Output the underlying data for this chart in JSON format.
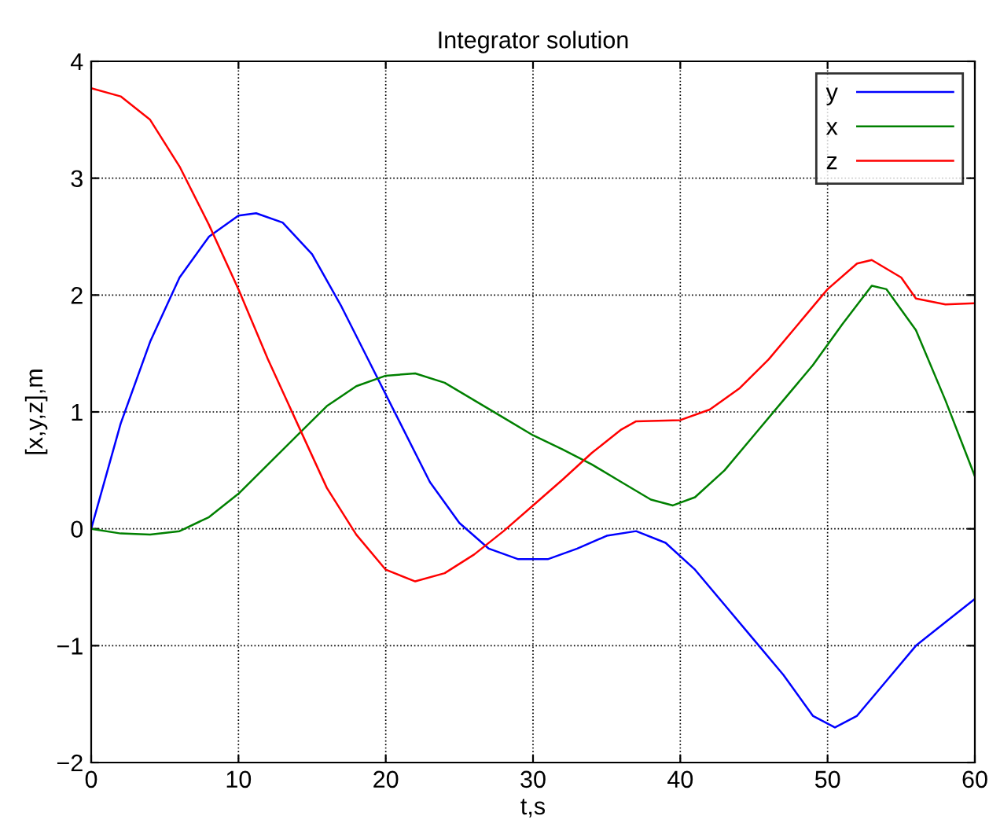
{
  "chart_data": {
    "type": "line",
    "title": "Integrator solution",
    "xlabel": "t,s",
    "ylabel": "[x,y,z],m",
    "xlim": [
      0,
      60
    ],
    "xticks": [
      0,
      10,
      20,
      30,
      40,
      50,
      60
    ],
    "ylim": [
      -2,
      4
    ],
    "yticks": [
      {
        "value": -2,
        "label": "−2"
      },
      {
        "value": -1,
        "label": "−1"
      },
      0,
      1,
      2,
      3,
      4
    ],
    "grid": true,
    "legend": "top right",
    "line_style": "solid",
    "series": [
      {
        "name": "y",
        "color": "#0000ff",
        "x": [
          0,
          2,
          4,
          6,
          8,
          10,
          11.2,
          13,
          15,
          17,
          19,
          21,
          23,
          25,
          27,
          29,
          31,
          33,
          35,
          37,
          39,
          41,
          43,
          45,
          47,
          49,
          50.5,
          52,
          54,
          56,
          58,
          60
        ],
        "values": [
          0,
          0.9,
          1.6,
          2.15,
          2.5,
          2.68,
          2.7,
          2.62,
          2.35,
          1.9,
          1.4,
          0.9,
          0.4,
          0.05,
          -0.17,
          -0.26,
          -0.26,
          -0.17,
          -0.06,
          -0.02,
          -0.12,
          -0.35,
          -0.65,
          -0.95,
          -1.25,
          -1.6,
          -1.7,
          -1.6,
          -1.3,
          -1.0,
          -0.8,
          -0.6
        ]
      },
      {
        "name": "x",
        "color": "#008000",
        "x": [
          0,
          2,
          4,
          6,
          8,
          10,
          12,
          14,
          16,
          18,
          20,
          22,
          24,
          26,
          28,
          30,
          32,
          34,
          36,
          38,
          39.5,
          41,
          43,
          45,
          47,
          49,
          51,
          53,
          54,
          56,
          58,
          60
        ],
        "values": [
          0,
          -0.04,
          -0.05,
          -0.02,
          0.1,
          0.3,
          0.55,
          0.8,
          1.05,
          1.22,
          1.31,
          1.33,
          1.25,
          1.1,
          0.95,
          0.8,
          0.68,
          0.55,
          0.4,
          0.25,
          0.2,
          0.27,
          0.5,
          0.8,
          1.1,
          1.4,
          1.75,
          2.08,
          2.05,
          1.7,
          1.1,
          0.45
        ]
      },
      {
        "name": "z",
        "color": "#ff0000",
        "x": [
          0,
          2,
          4,
          6,
          8,
          10,
          12,
          14,
          16,
          18,
          20,
          22,
          24,
          26,
          28,
          30,
          32,
          34,
          36,
          37,
          40,
          42,
          44,
          46,
          48,
          50,
          52,
          53,
          55,
          56,
          58,
          60
        ],
        "values": [
          3.77,
          3.7,
          3.5,
          3.1,
          2.6,
          2.05,
          1.45,
          0.9,
          0.35,
          -0.05,
          -0.35,
          -0.45,
          -0.38,
          -0.22,
          -0.02,
          0.2,
          0.42,
          0.65,
          0.85,
          0.92,
          0.93,
          1.02,
          1.2,
          1.45,
          1.75,
          2.05,
          2.27,
          2.3,
          2.15,
          1.97,
          1.92,
          1.93
        ]
      }
    ]
  }
}
